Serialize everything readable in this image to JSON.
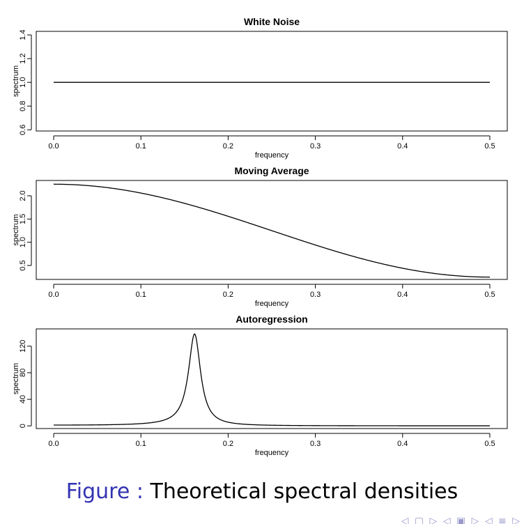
{
  "caption": {
    "prefix": "Figure :",
    "text": "Theoretical spectral densities"
  },
  "nav_symbols": "◁ ▢ ▷ ◁ ▣ ▷ ◁ ≡ ▷",
  "chart_data": [
    {
      "type": "line",
      "title": "White Noise",
      "xlabel": "frequency",
      "ylabel": "spectrum",
      "xlim": [
        -0.02,
        0.52
      ],
      "ylim": [
        0.59,
        1.43
      ],
      "xticks": [
        "0.0",
        "0.1",
        "0.2",
        "0.3",
        "0.4",
        "0.5"
      ],
      "yticks": [
        "0.6",
        "0.8",
        "1.0",
        "1.2",
        "1.4"
      ],
      "model": "white_noise",
      "x": [
        0.0,
        0.5
      ],
      "y": [
        1.0,
        1.0
      ]
    },
    {
      "type": "line",
      "title": "Moving Average",
      "xlabel": "frequency",
      "ylabel": "spectrum",
      "xlim": [
        -0.02,
        0.52
      ],
      "ylim": [
        0.2,
        2.33
      ],
      "xticks": [
        "0.0",
        "0.1",
        "0.2",
        "0.3",
        "0.4",
        "0.5"
      ],
      "yticks": [
        "0.5",
        "1.0",
        "1.5",
        "2.0"
      ],
      "model": "ma1_theta_0.5",
      "x": [
        0.0,
        0.1,
        0.16,
        0.2,
        0.3,
        0.4,
        0.5
      ],
      "y": [
        2.25,
        2.06,
        1.8,
        1.56,
        0.94,
        0.44,
        0.25
      ]
    },
    {
      "type": "line",
      "title": "Autoregression",
      "xlabel": "frequency",
      "ylabel": "spectrum",
      "xlim": [
        -0.02,
        0.52
      ],
      "ylim": [
        -4,
        146
      ],
      "xticks": [
        "0.0",
        "0.1",
        "0.2",
        "0.3",
        "0.4",
        "0.5"
      ],
      "yticks": [
        "0",
        "40",
        "80",
        "120"
      ],
      "model": "ar2_phi1_1_phi2_-0.9",
      "x": [
        0.0,
        0.1,
        0.16,
        0.2,
        0.3,
        0.4,
        0.5
      ],
      "y": [
        1.2,
        4.0,
        140.0,
        5.0,
        0.8,
        0.4,
        0.3
      ]
    }
  ]
}
